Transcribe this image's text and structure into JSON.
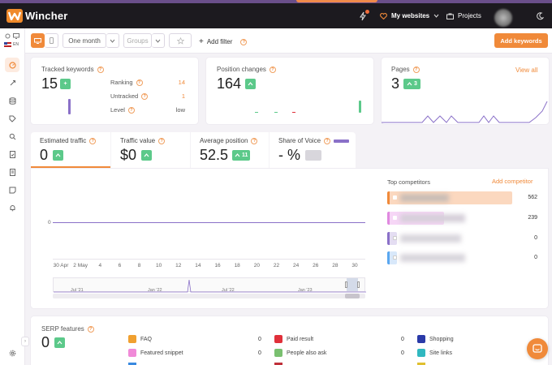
{
  "header": {
    "brand": "Wincher",
    "my_websites": "My websites",
    "projects": "Projects"
  },
  "rail": {
    "language": "EN"
  },
  "toolbar": {
    "period": "One month",
    "groups_placeholder": "Groups",
    "add_filter": "Add filter",
    "add_keywords": "Add keywords"
  },
  "tracked": {
    "title": "Tracked keywords",
    "value": "15",
    "badge": "+",
    "rows": [
      {
        "label": "Ranking",
        "value": "14"
      },
      {
        "label": "Untracked",
        "value": "1"
      },
      {
        "label": "Level",
        "value": "low"
      }
    ]
  },
  "position_changes": {
    "title": "Position changes",
    "value": "164",
    "badge": "^"
  },
  "pages": {
    "title": "Pages",
    "value": "3",
    "badge": "^ 3",
    "view_all": "View all"
  },
  "tabs": [
    {
      "label": "Estimated traffic",
      "value": "0",
      "badge": "^"
    },
    {
      "label": "Traffic value",
      "value": "$0",
      "badge": "^"
    },
    {
      "label": "Average position",
      "value": "52.5",
      "badge": "^ 11"
    },
    {
      "label": "Share of Voice",
      "value": "- %",
      "badge": "—"
    }
  ],
  "chart": {
    "y_label": "0",
    "x_ticks": [
      "30 Apr",
      "2 May",
      "4",
      "6",
      "8",
      "10",
      "12",
      "14",
      "16",
      "18",
      "20",
      "22",
      "24",
      "26",
      "28",
      "30"
    ],
    "navigator_ticks": [
      "Jul '21",
      "Jan '22",
      "Jul '22",
      "Jan '23"
    ]
  },
  "competitors": {
    "title": "Top competitors",
    "add": "Add competitor",
    "values": [
      "562",
      "239",
      "0",
      "0"
    ],
    "colors": [
      "#f08a3a",
      "#e089e0",
      "#8a70c8",
      "#5aa7f0"
    ]
  },
  "serp": {
    "title": "SERP features",
    "value": "0",
    "badge": "^",
    "features": [
      {
        "label": "FAQ",
        "value": "0",
        "color": "#f0a030"
      },
      {
        "label": "Featured snippet",
        "value": "0",
        "color": "#f08ad8"
      },
      {
        "label": "Paid result",
        "value": "0",
        "color": "#e0303a"
      },
      {
        "label": "People also ask",
        "value": "0",
        "color": "#7ac070"
      },
      {
        "label": "Shopping",
        "value": "",
        "color": "#2a3aa8"
      },
      {
        "label": "Site links",
        "value": "",
        "color": "#30b8c0"
      }
    ]
  }
}
